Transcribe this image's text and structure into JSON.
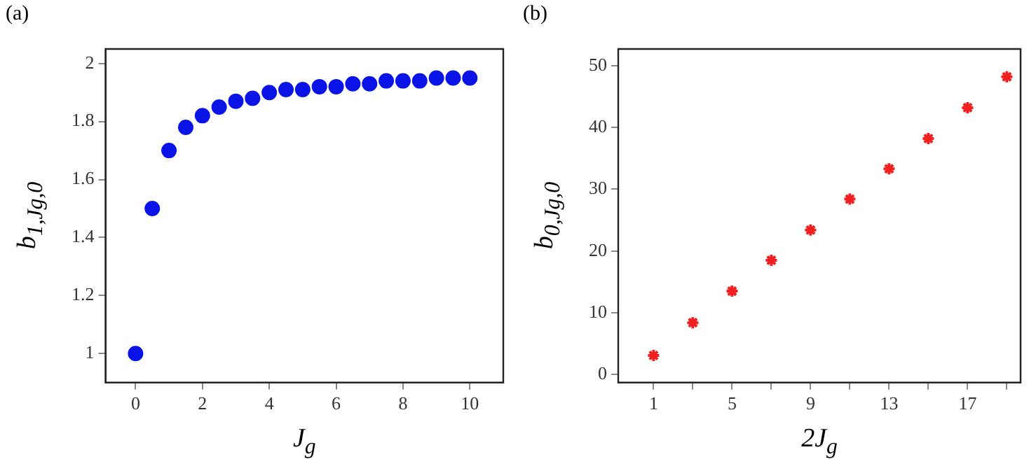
{
  "chart_data": [
    {
      "type": "scatter",
      "title": "(a)",
      "xlabel": "J$_{g}$",
      "ylabel": "b$_{1,Jg,0}$",
      "marker": "circle",
      "grid": false,
      "legend": false,
      "xlim": [
        -0.9,
        11
      ],
      "xticks": [
        0,
        2,
        4,
        6,
        8,
        10
      ],
      "ylim": [
        0.9,
        2.05
      ],
      "yticks": [
        1,
        1.2,
        1.4,
        1.6,
        1.8,
        2
      ],
      "series": [
        {
          "color": "#0a14e6",
          "x": [
            0,
            0.5,
            1,
            1.5,
            2,
            2.5,
            3,
            3.5,
            4,
            4.5,
            5,
            5.5,
            6,
            6.5,
            7,
            7.5,
            8,
            8.5,
            9,
            9.5,
            10
          ],
          "values": [
            1.0,
            1.5,
            1.7,
            1.78,
            1.82,
            1.85,
            1.87,
            1.88,
            1.9,
            1.91,
            1.91,
            1.92,
            1.92,
            1.93,
            1.93,
            1.94,
            1.94,
            1.94,
            1.95,
            1.95,
            1.95
          ]
        }
      ]
    },
    {
      "type": "scatter",
      "title": "(b)",
      "xlabel": "2J$_{g}$",
      "ylabel": "b$_{0,Jg,0}$",
      "marker": "cross",
      "grid": false,
      "legend": false,
      "xlim": [
        -0.8,
        19.7
      ],
      "xticks": [
        1,
        {
          "value": 3,
          "label": null
        },
        5,
        {
          "value": 7,
          "label": null
        },
        9,
        {
          "value": 11,
          "label": null
        },
        13,
        {
          "value": 15,
          "label": null
        },
        17,
        {
          "value": 19,
          "label": null
        }
      ],
      "ylim": [
        -1.3,
        52.7
      ],
      "yticks": [
        0,
        10,
        20,
        30,
        40,
        50
      ],
      "series": [
        {
          "color": "#f02020",
          "x": [
            1,
            3,
            5,
            7,
            9,
            11,
            13,
            15,
            17,
            19
          ],
          "values": [
            3.1,
            8.4,
            13.5,
            18.5,
            23.4,
            28.4,
            33.3,
            38.2,
            43.2,
            48.2
          ]
        }
      ]
    }
  ]
}
